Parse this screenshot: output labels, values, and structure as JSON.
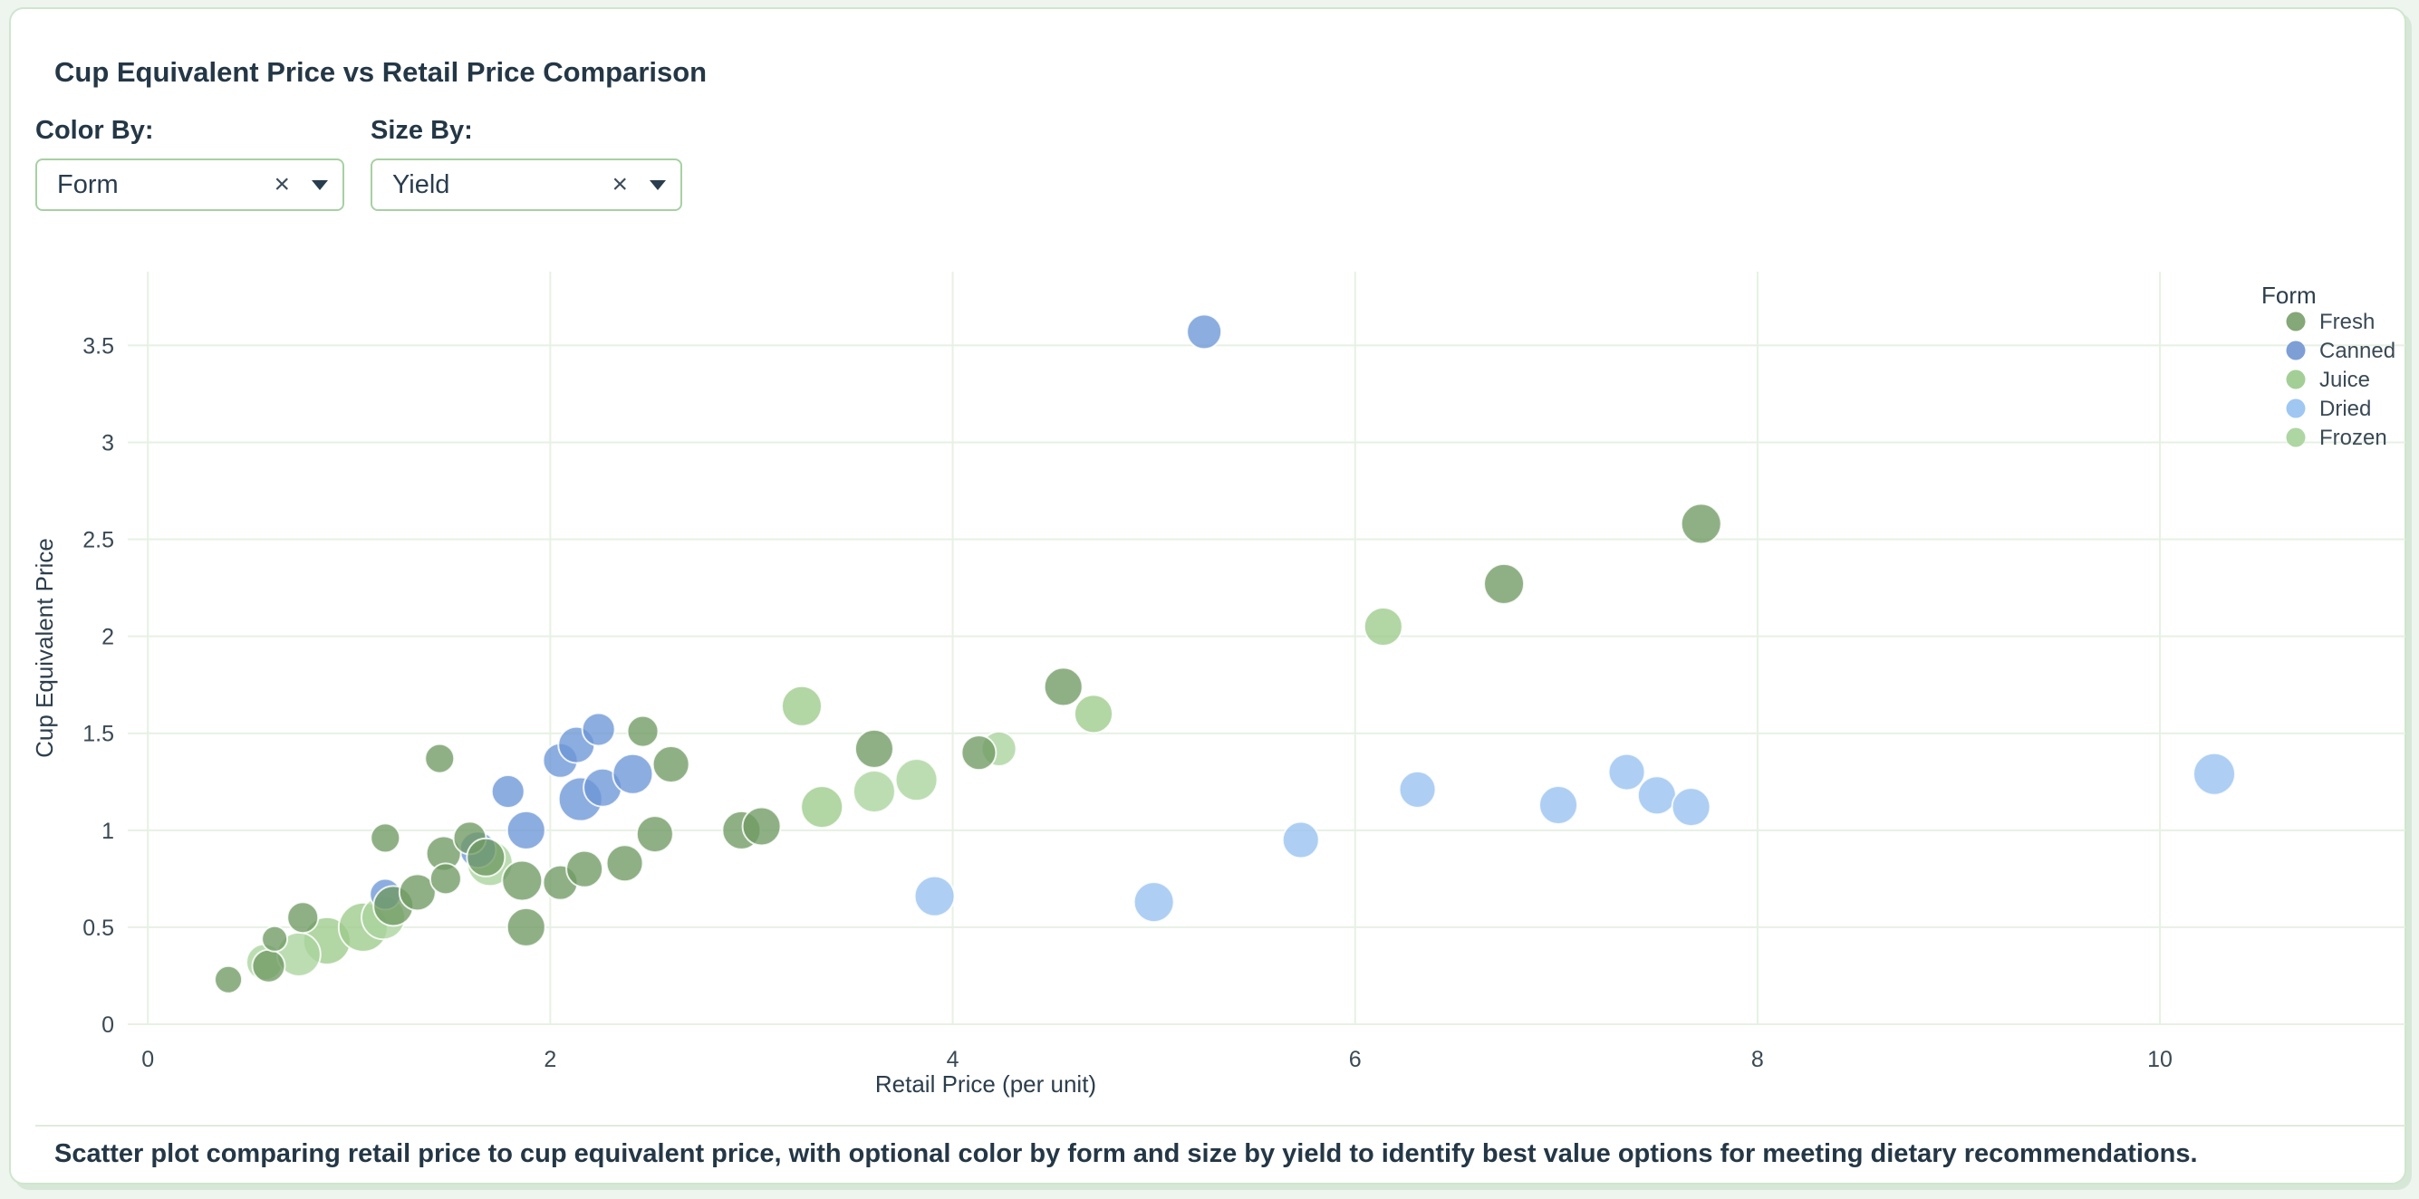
{
  "page": {
    "background": "#edf5ee",
    "card_background": "#ffffff",
    "card_border": "#cfe6cd",
    "accent_green": "#a7d1a3"
  },
  "header": {
    "title": "Cup Equivalent Price vs Retail Price Comparison"
  },
  "controls": {
    "color_by": {
      "label": "Color By:",
      "value": "Form",
      "clear_icon": "×"
    },
    "size_by": {
      "label": "Size By:",
      "value": "Yield",
      "clear_icon": "×"
    }
  },
  "caption": "Scatter plot comparing retail price to cup equivalent price, with optional color by form and size by yield to identify best value options for meeting dietary recommendations.",
  "chart_data": {
    "type": "scatter",
    "xlabel": "Retail Price (per unit)",
    "ylabel": "Cup Equivalent Price",
    "xlim": [
      -0.1,
      11.22
    ],
    "ylim": [
      0,
      3.88
    ],
    "x_ticks": [
      0,
      2,
      4,
      6,
      8,
      10
    ],
    "y_ticks": [
      0,
      0.5,
      1,
      1.5,
      2,
      2.5,
      3,
      3.5
    ],
    "x_tick_labels": [
      "0",
      "2",
      "4",
      "6",
      "8",
      "10"
    ],
    "y_tick_labels": [
      "0",
      "0.5",
      "1",
      "1.5",
      "2",
      "2.5",
      "3",
      "3.5"
    ],
    "grid": true,
    "grid_color": "#e6f1e4",
    "tick_text_color": "#3a4a55",
    "axis_title_color": "#2c3e4c",
    "point_opacity": 0.78,
    "point_stroke": "#ffffff",
    "legend": {
      "title": "Form",
      "position": "top-right",
      "entries": [
        {
          "label": "Fresh",
          "color": "#84a878"
        },
        {
          "label": "Canned",
          "color": "#7d9fd6"
        },
        {
          "label": "Juice",
          "color": "#a3cf96"
        },
        {
          "label": "Dried",
          "color": "#9fc7f1"
        },
        {
          "label": "Frozen",
          "color": "#aed6a3"
        }
      ]
    },
    "series": [
      {
        "name": "Juice",
        "color": "#9cca8b",
        "points": [
          [
            0.89,
            0.43,
            26
          ],
          [
            1.07,
            0.5,
            27
          ],
          [
            3.25,
            1.64,
            22
          ],
          [
            3.35,
            1.12,
            23
          ],
          [
            4.7,
            1.6,
            21
          ],
          [
            6.14,
            2.05,
            21
          ]
        ]
      },
      {
        "name": "Frozen",
        "color": "#a9d49c",
        "points": [
          [
            0.58,
            0.32,
            20
          ],
          [
            0.75,
            0.36,
            24
          ],
          [
            1.17,
            0.55,
            24
          ],
          [
            1.7,
            0.83,
            25
          ],
          [
            3.61,
            1.2,
            23
          ],
          [
            3.82,
            1.26,
            23
          ],
          [
            4.23,
            1.42,
            19
          ]
        ]
      },
      {
        "name": "Dried",
        "color": "#97c2ef",
        "points": [
          [
            3.91,
            0.66,
            22
          ],
          [
            5.0,
            0.63,
            22
          ],
          [
            5.73,
            0.95,
            20
          ],
          [
            6.31,
            1.21,
            20
          ],
          [
            7.01,
            1.13,
            21
          ],
          [
            7.35,
            1.3,
            20
          ],
          [
            7.5,
            1.18,
            21
          ],
          [
            7.67,
            1.12,
            21
          ],
          [
            10.27,
            1.29,
            23
          ]
        ]
      },
      {
        "name": "Canned",
        "color": "#6c96d6",
        "points": [
          [
            1.18,
            0.67,
            17
          ],
          [
            1.64,
            0.9,
            20
          ],
          [
            1.79,
            1.2,
            18
          ],
          [
            1.88,
            1.0,
            21
          ],
          [
            2.05,
            1.36,
            19
          ],
          [
            2.13,
            1.44,
            20
          ],
          [
            2.15,
            1.16,
            24
          ],
          [
            2.24,
            1.52,
            18
          ],
          [
            2.26,
            1.22,
            21
          ],
          [
            2.41,
            1.29,
            22
          ],
          [
            5.25,
            3.57,
            19
          ]
        ]
      },
      {
        "name": "Fresh",
        "color": "#6f9a63",
        "points": [
          [
            0.4,
            0.23,
            15
          ],
          [
            0.6,
            0.3,
            18
          ],
          [
            0.63,
            0.44,
            14
          ],
          [
            0.77,
            0.55,
            17
          ],
          [
            1.18,
            0.96,
            16
          ],
          [
            1.22,
            0.61,
            22
          ],
          [
            1.34,
            0.68,
            20
          ],
          [
            1.45,
            1.37,
            16
          ],
          [
            1.47,
            0.88,
            19
          ],
          [
            1.48,
            0.75,
            17
          ],
          [
            1.6,
            0.96,
            18
          ],
          [
            1.68,
            0.86,
            21
          ],
          [
            1.86,
            0.74,
            22
          ],
          [
            1.88,
            0.5,
            21
          ],
          [
            2.05,
            0.73,
            19
          ],
          [
            2.17,
            0.8,
            20
          ],
          [
            2.37,
            0.83,
            20
          ],
          [
            2.46,
            1.51,
            17
          ],
          [
            2.52,
            0.98,
            20
          ],
          [
            2.6,
            1.34,
            20
          ],
          [
            2.95,
            1.0,
            21
          ],
          [
            3.05,
            1.02,
            21
          ],
          [
            3.61,
            1.42,
            21
          ],
          [
            4.13,
            1.4,
            19
          ],
          [
            4.55,
            1.74,
            21
          ],
          [
            6.74,
            2.27,
            22
          ],
          [
            7.72,
            2.58,
            22
          ]
        ]
      }
    ]
  }
}
